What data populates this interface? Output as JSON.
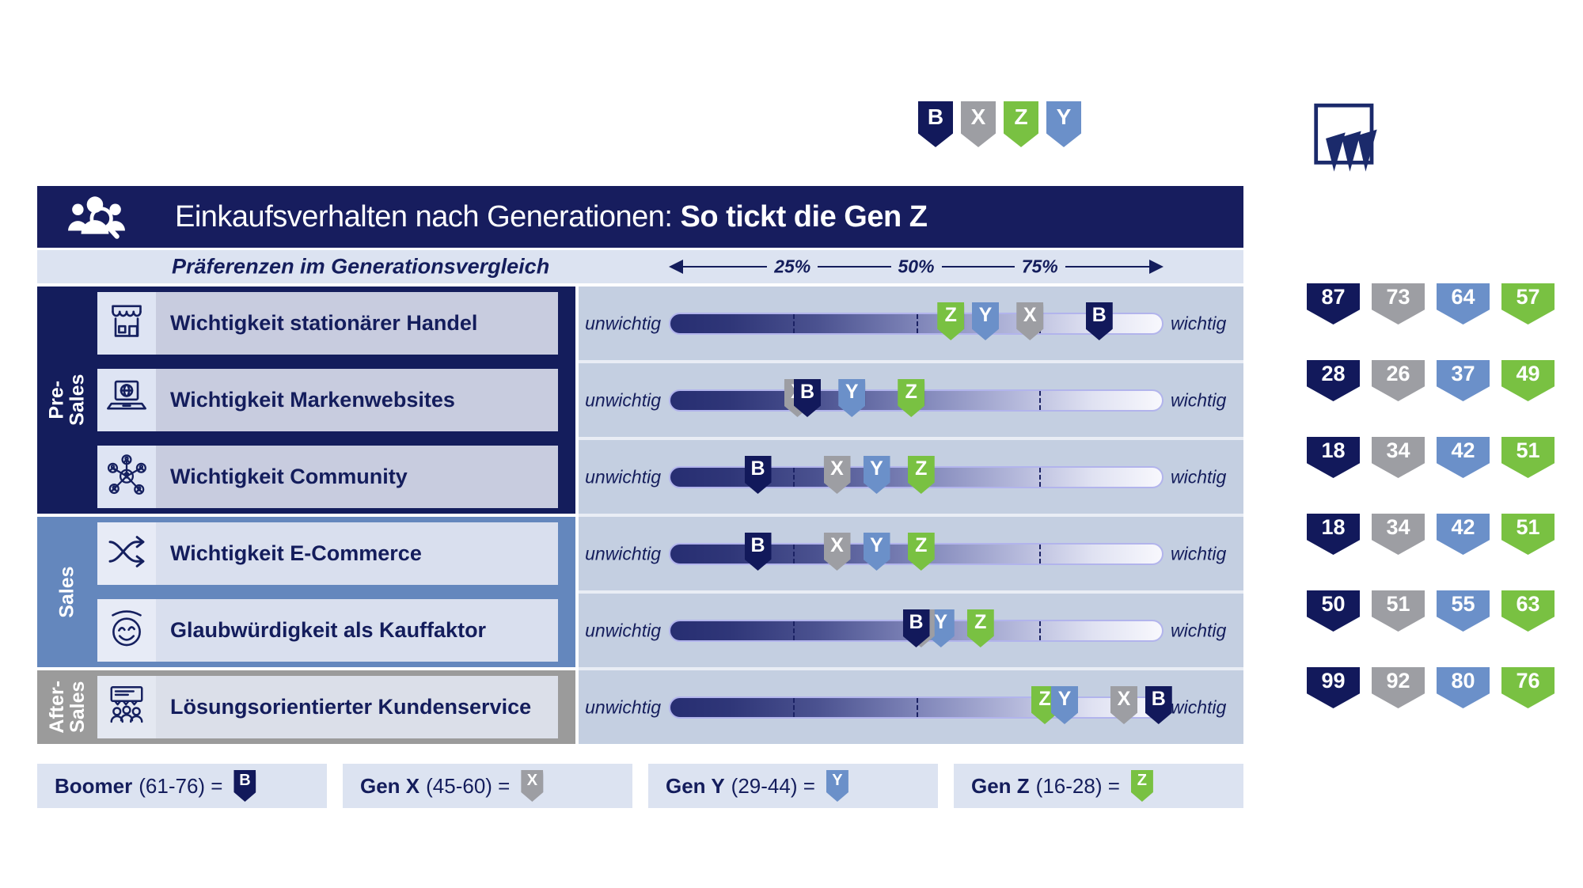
{
  "header": {
    "title_regular": "Einkaufsverhalten nach Generationen:",
    "title_bold": " So tickt die Gen Z"
  },
  "subheader": {
    "label": "Präferenzen im Generationsvergleich",
    "ticks": [
      "25%",
      "50%",
      "75%"
    ]
  },
  "slider_labels": {
    "left": "unwichtig",
    "right": "wichtig"
  },
  "top_badges": {
    "letters": [
      "B",
      "X",
      "Z",
      "Y"
    ]
  },
  "generations": [
    {
      "key": "B",
      "name": "Boomer",
      "range": "(61-76) =",
      "color": "#12195b"
    },
    {
      "key": "X",
      "name": "Gen X",
      "range": "(45-60) =",
      "color": "#9d9ea3"
    },
    {
      "key": "Y",
      "name": "Gen Y",
      "range": "(29-44) =",
      "color": "#6b90c9"
    },
    {
      "key": "Z",
      "name": "Gen Z",
      "range": "(16-28) =",
      "color": "#79c142"
    }
  ],
  "groups": [
    {
      "label_lines": [
        "Pre-",
        "Sales"
      ],
      "color": "#141d5c",
      "card_bg": "#c8ccdf",
      "tile_bg": "#dee4f3",
      "row_indexes": [
        0,
        1,
        2
      ]
    },
    {
      "label_lines": [
        "Sales"
      ],
      "color": "#6487bd",
      "card_bg": "#d9dfee",
      "tile_bg": "#e7ebf6",
      "row_indexes": [
        3,
        4
      ]
    },
    {
      "label_lines": [
        "After-",
        "Sales"
      ],
      "color": "#9b9b9b",
      "card_bg": "#dbdfe9",
      "tile_bg": "#e4e8f1",
      "row_indexes": [
        5
      ]
    }
  ],
  "rows": [
    {
      "icon": "store-icon",
      "label": "Wichtigkeit stationärer Handel",
      "values": {
        "B": 87,
        "X": 73,
        "Y": 64,
        "Z": 57
      }
    },
    {
      "icon": "laptop-globe-icon",
      "label": "Wichtigkeit Markenwebsites",
      "values": {
        "B": 28,
        "X": 26,
        "Y": 37,
        "Z": 49
      }
    },
    {
      "icon": "community-icon",
      "label": "Wichtigkeit Community",
      "values": {
        "B": 18,
        "X": 34,
        "Y": 42,
        "Z": 51
      }
    },
    {
      "icon": "shuffle-icon",
      "label": "Wichtigkeit E-Commerce",
      "values": {
        "B": 18,
        "X": 34,
        "Y": 42,
        "Z": 51
      }
    },
    {
      "icon": "smiley-icon",
      "label": "Glaubwürdigkeit als Kauffaktor",
      "values": {
        "B": 50,
        "X": 51,
        "Y": 55,
        "Z": 63
      }
    },
    {
      "icon": "service-icon",
      "label": "Lösungsorientierter Kundenservice",
      "values": {
        "B": 99,
        "X": 92,
        "Y": 80,
        "Z": 76
      }
    }
  ],
  "chart_data": {
    "type": "scatter",
    "title": "Einkaufsverhalten nach Generationen: So tickt die Gen Z",
    "subtitle": "Präferenzen im Generationsvergleich",
    "categories": [
      "Wichtigkeit stationärer Handel",
      "Wichtigkeit Markenwebsites",
      "Wichtigkeit Community",
      "Wichtigkeit E-Commerce",
      "Glaubwürdigkeit als Kauffaktor",
      "Lösungsorientierter Kundenservice"
    ],
    "category_groups": [
      {
        "name": "Pre-Sales",
        "rows": [
          0,
          1,
          2
        ]
      },
      {
        "name": "Sales",
        "rows": [
          3,
          4
        ]
      },
      {
        "name": "After-Sales",
        "rows": [
          5
        ]
      }
    ],
    "series": [
      {
        "name": "Boomer (61-76)",
        "marker": "B",
        "color": "#12195b",
        "values": [
          87,
          28,
          18,
          18,
          50,
          99
        ]
      },
      {
        "name": "Gen X (45-60)",
        "marker": "X",
        "color": "#9d9ea3",
        "values": [
          73,
          26,
          34,
          34,
          51,
          92
        ]
      },
      {
        "name": "Gen Y (29-44)",
        "marker": "Y",
        "color": "#6b90c9",
        "values": [
          64,
          37,
          42,
          42,
          55,
          80
        ]
      },
      {
        "name": "Gen Z (16-28)",
        "marker": "Z",
        "color": "#79c142",
        "values": [
          57,
          49,
          51,
          51,
          63,
          76
        ]
      }
    ],
    "xlim": [
      0,
      100
    ],
    "x_ticks": [
      "25%",
      "50%",
      "75%"
    ],
    "axis_endpoint_labels": {
      "low": "unwichtig",
      "high": "wichtig"
    },
    "legend_position": "bottom",
    "grid": false
  }
}
